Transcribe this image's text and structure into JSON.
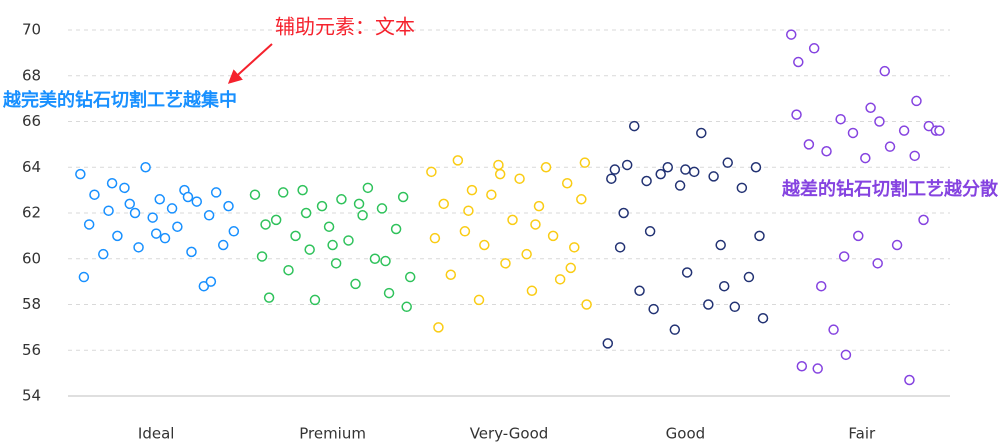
{
  "chart_data": {
    "type": "scatter",
    "categories": [
      "Ideal",
      "Premium",
      "Very-Good",
      "Good",
      "Fair"
    ],
    "xlim": [
      -0.5,
      4.5
    ],
    "ylim": [
      54,
      70
    ],
    "yticks": [
      54,
      56,
      58,
      60,
      62,
      64,
      66,
      68,
      70
    ],
    "grid": true,
    "annotations": [
      {
        "text": "辅助元素：文本",
        "color": "#f5222d"
      },
      {
        "text": "越完美的钻石切割工艺越集中",
        "color": "#1890ff"
      },
      {
        "text": "越差的钻石切割工艺越分散",
        "color": "#8543e0"
      }
    ],
    "series": [
      {
        "color": "#1890ff",
        "x": [
          -0.43,
          -0.38,
          -0.35,
          -0.3,
          -0.27,
          -0.22,
          -0.18,
          -0.15,
          -0.1,
          -0.06,
          -0.02,
          0.02,
          0.05,
          0.09,
          0.12,
          0.16,
          0.2,
          0.23,
          0.27,
          0.3,
          0.34,
          0.38,
          0.41,
          0.44,
          -0.41,
          -0.12,
          0.0,
          0.18,
          0.31,
          -0.25
        ],
        "values": [
          63.7,
          61.5,
          62.8,
          60.2,
          62.1,
          61.0,
          63.1,
          62.4,
          60.5,
          64.0,
          61.8,
          62.6,
          60.9,
          62.2,
          61.4,
          63.0,
          60.3,
          62.5,
          58.8,
          61.9,
          62.9,
          60.6,
          62.3,
          61.2,
          59.2,
          62.0,
          61.1,
          62.7,
          59.0,
          63.3
        ]
      },
      {
        "color": "#2fc25b",
        "x": [
          0.56,
          0.6,
          0.64,
          0.68,
          0.72,
          0.75,
          0.79,
          0.83,
          0.87,
          0.9,
          0.94,
          0.98,
          1.02,
          1.05,
          1.09,
          1.13,
          1.17,
          1.2,
          1.24,
          1.28,
          1.32,
          1.36,
          1.4,
          1.44,
          0.62,
          0.85,
          1.0,
          1.15,
          1.3,
          1.42
        ],
        "values": [
          62.8,
          60.1,
          58.3,
          61.7,
          62.9,
          59.5,
          61.0,
          63.0,
          60.4,
          58.2,
          62.3,
          61.4,
          59.8,
          62.6,
          60.8,
          58.9,
          61.9,
          63.1,
          60.0,
          62.2,
          58.5,
          61.3,
          62.7,
          59.2,
          61.5,
          62.0,
          60.6,
          62.4,
          59.9,
          57.9
        ]
      },
      {
        "color": "#facc14",
        "x": [
          1.56,
          1.6,
          1.63,
          1.67,
          1.71,
          1.75,
          1.79,
          1.83,
          1.86,
          1.9,
          1.94,
          1.98,
          2.02,
          2.06,
          2.1,
          2.13,
          2.17,
          2.21,
          2.25,
          2.29,
          2.33,
          2.37,
          2.41,
          2.44,
          1.58,
          1.77,
          1.95,
          2.15,
          2.35,
          2.43
        ],
        "values": [
          63.8,
          57.0,
          62.4,
          59.3,
          64.3,
          61.2,
          63.0,
          58.2,
          60.6,
          62.8,
          64.1,
          59.8,
          61.7,
          63.5,
          60.2,
          58.6,
          62.3,
          64.0,
          61.0,
          59.1,
          63.3,
          60.5,
          62.6,
          58.0,
          60.9,
          62.1,
          63.7,
          61.5,
          59.6,
          64.2
        ]
      },
      {
        "color": "#223273",
        "x": [
          2.56,
          2.6,
          2.63,
          2.67,
          2.71,
          2.74,
          2.78,
          2.82,
          2.86,
          2.9,
          2.94,
          2.97,
          3.01,
          3.05,
          3.09,
          3.13,
          3.16,
          3.2,
          3.24,
          3.28,
          3.32,
          3.36,
          3.4,
          3.44,
          2.58,
          2.65,
          2.8,
          3.0,
          3.22,
          3.42
        ],
        "values": [
          56.3,
          63.9,
          60.5,
          64.1,
          65.8,
          58.6,
          63.4,
          57.8,
          63.7,
          64.0,
          56.9,
          63.2,
          59.4,
          63.8,
          65.5,
          58.0,
          63.6,
          60.6,
          64.2,
          57.9,
          63.1,
          59.2,
          64.0,
          57.4,
          63.5,
          62.0,
          61.2,
          63.9,
          58.8,
          61.0
        ]
      },
      {
        "color": "#8543e0",
        "x": [
          3.6,
          3.63,
          3.66,
          3.7,
          3.73,
          3.77,
          3.8,
          3.84,
          3.88,
          3.91,
          3.95,
          3.98,
          4.02,
          4.05,
          4.09,
          4.13,
          4.16,
          4.2,
          4.24,
          4.27,
          4.31,
          4.35,
          4.38,
          4.42,
          3.64,
          3.75,
          3.9,
          4.1,
          4.3,
          4.44
        ],
        "values": [
          69.8,
          66.3,
          55.3,
          65.0,
          69.2,
          58.8,
          64.7,
          56.9,
          66.1,
          55.8,
          65.5,
          61.0,
          64.4,
          66.6,
          59.8,
          68.2,
          64.9,
          60.6,
          65.6,
          54.7,
          66.9,
          61.7,
          65.8,
          65.6,
          68.6,
          55.2,
          60.1,
          66.0,
          64.5,
          65.6
        ]
      }
    ]
  }
}
